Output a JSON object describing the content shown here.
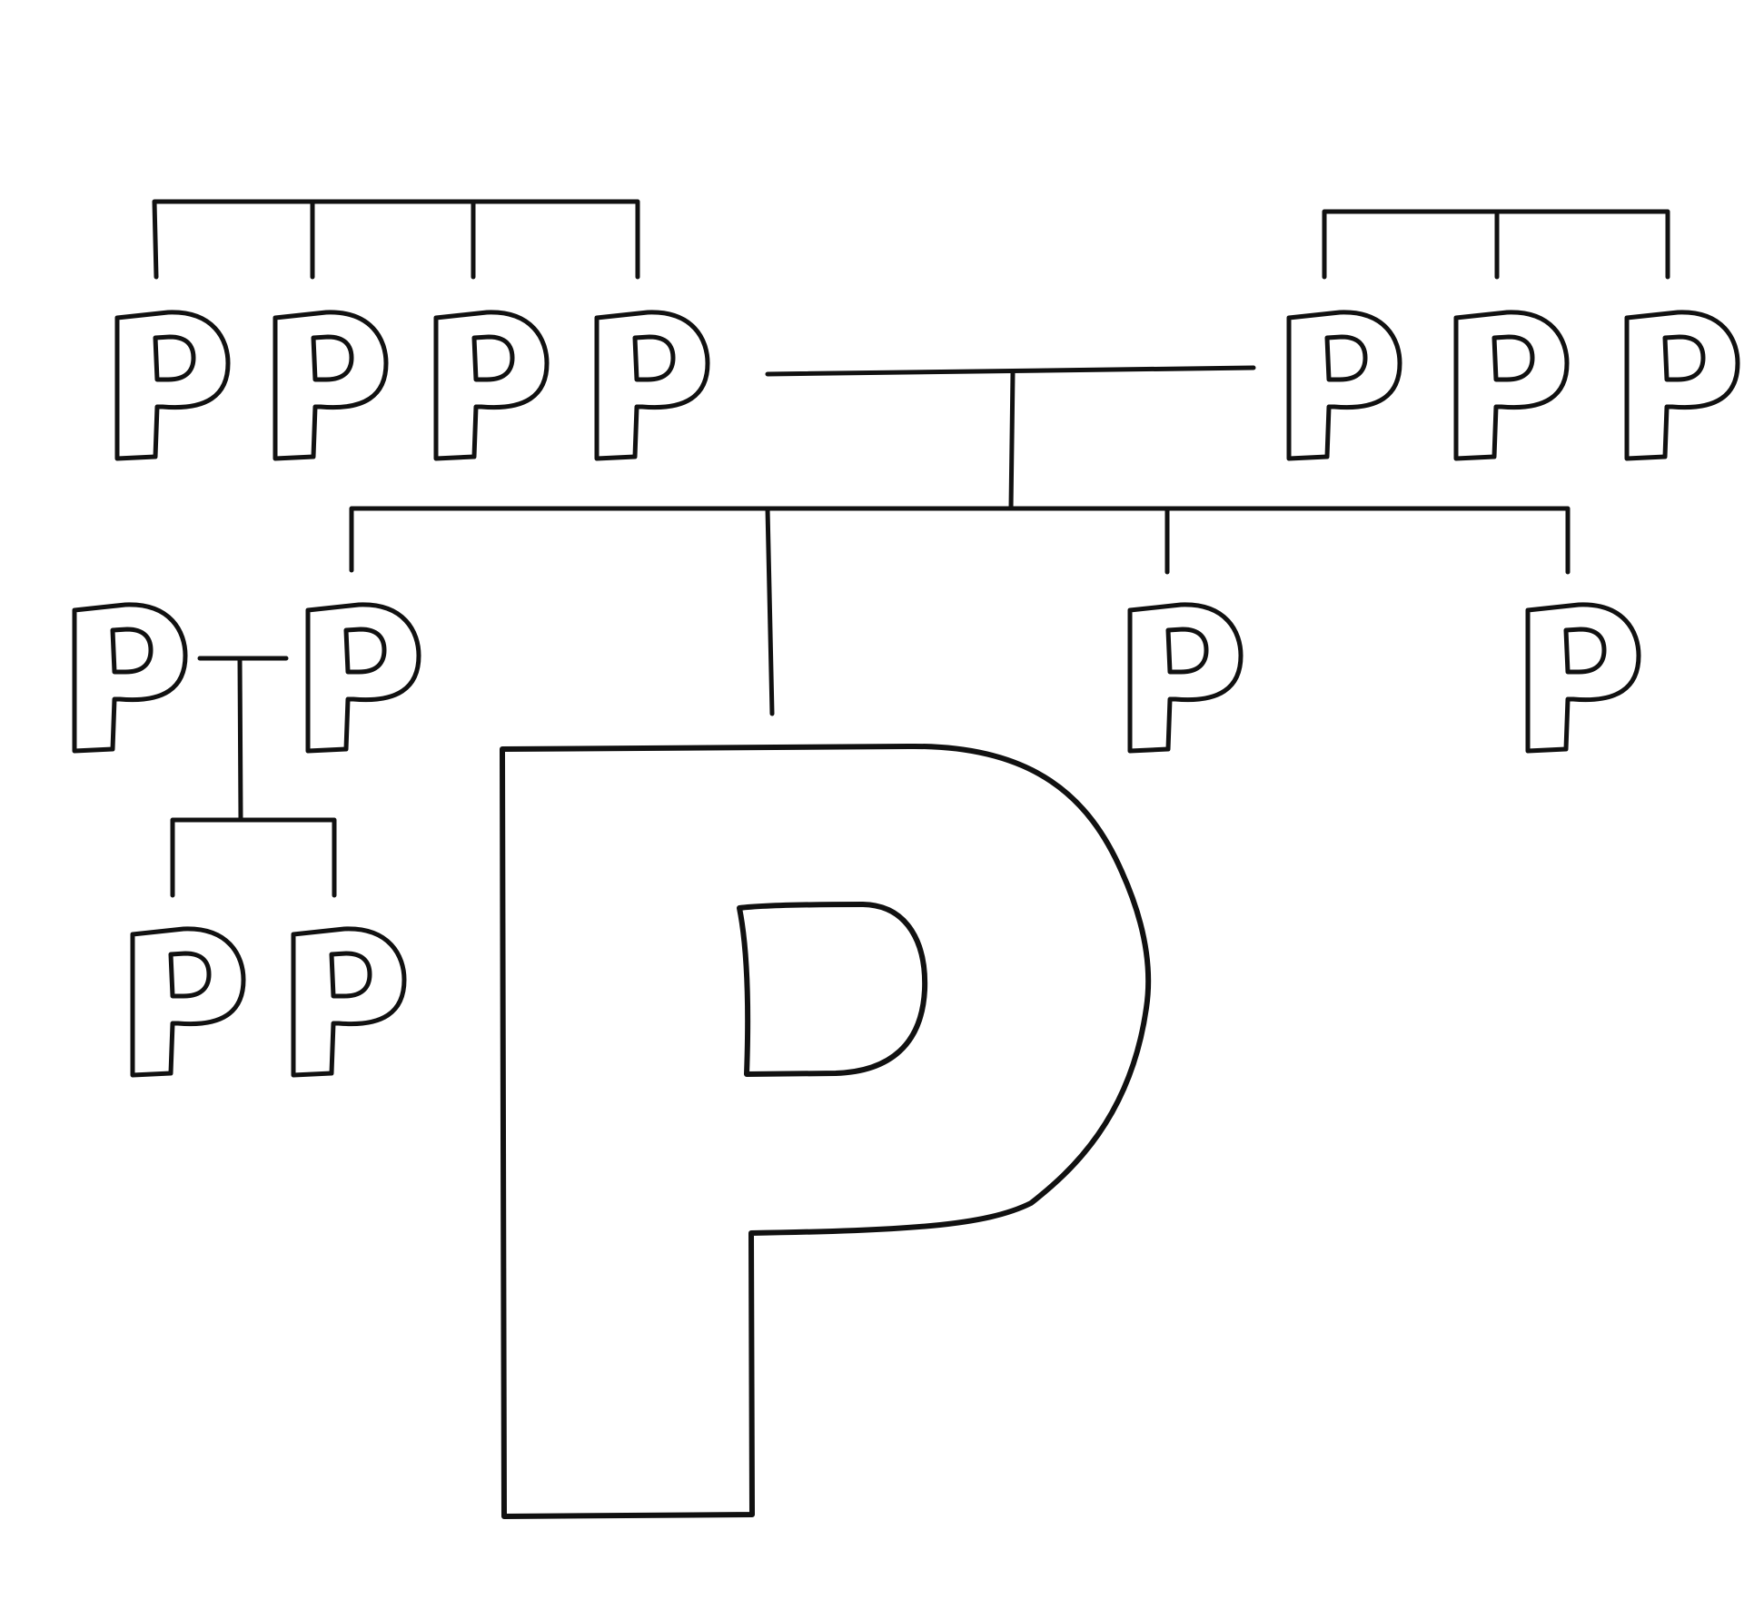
{
  "diagram": {
    "glyph": "P",
    "colors": {
      "ink": "#111111",
      "paper": "#ffffff"
    },
    "nodes": [
      {
        "id": "grandparent-left-1",
        "glyph": "P"
      },
      {
        "id": "grandparent-left-2",
        "glyph": "P"
      },
      {
        "id": "grandparent-left-3",
        "glyph": "P"
      },
      {
        "id": "grandparent-left-4",
        "glyph": "P"
      },
      {
        "id": "grandparent-right-1",
        "glyph": "P"
      },
      {
        "id": "grandparent-right-2",
        "glyph": "P"
      },
      {
        "id": "grandparent-right-3",
        "glyph": "P"
      },
      {
        "id": "sibling-left-spouse",
        "glyph": "P"
      },
      {
        "id": "sibling-left",
        "glyph": "P"
      },
      {
        "id": "sibling-right-1",
        "glyph": "P"
      },
      {
        "id": "sibling-right-2",
        "glyph": "P"
      },
      {
        "id": "nephew-1",
        "glyph": "P"
      },
      {
        "id": "nephew-2",
        "glyph": "P"
      },
      {
        "id": "main-person",
        "glyph": "P"
      }
    ]
  }
}
